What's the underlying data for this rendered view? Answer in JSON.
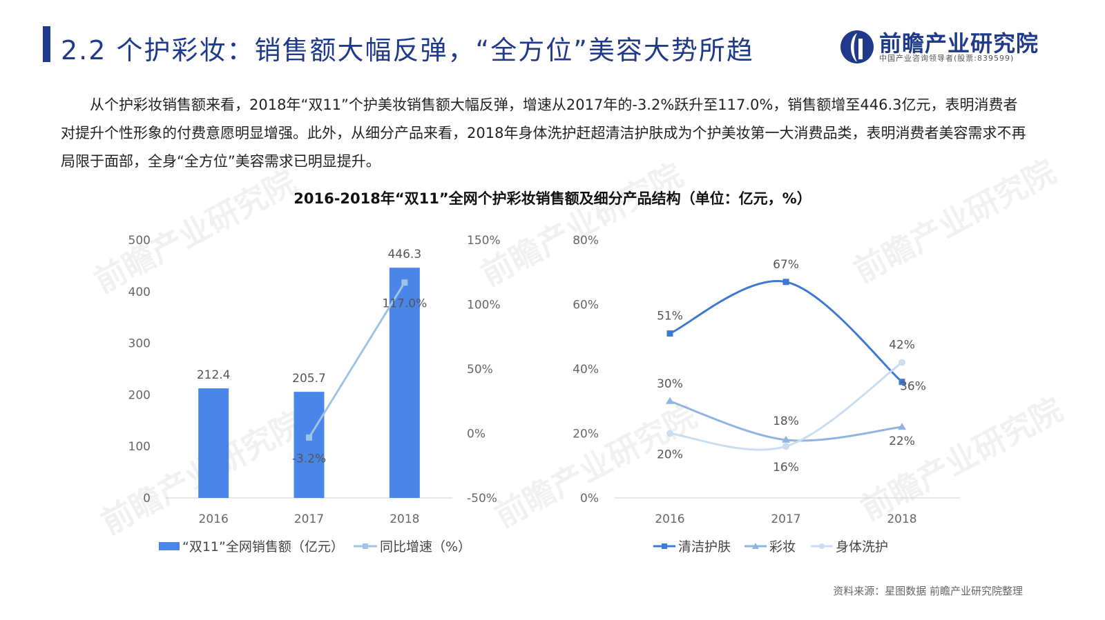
{
  "header": {
    "title": "2.2 个护彩妆：销售额大幅反弹，“全方位”美容大势所趋",
    "logo_name": "前瞻产业研究院",
    "logo_sub": "中国产业咨询领导者(股票:839599)"
  },
  "body": {
    "paragraph": "从个护彩妆销售额来看，2018年“双11”个护美妆销售额大幅反弹，增速从2017年的-3.2%跃升至117.0%，销售额增至446.3亿元，表明消费者对提升个性形象的付费意愿明显增强。此外，从细分产品来看，2018年身体洗护赶超清洁护肤成为个护美妆第一大消费品类，表明消费者美容需求不再局限于面部，全身“全方位”美容需求已明显提升。"
  },
  "chart_title": "2016-2018年“双11”全网个护彩妆销售额及细分产品结构（单位：亿元，%）",
  "source": "资料来源：星图数据 前瞻产业研究院整理",
  "watermark": "前瞻产业研究院",
  "colors": {
    "bar": "#4a86e8",
    "growth": "#9dc3e6",
    "clean": "#3d78d4",
    "makeup": "#8fb4e3",
    "body": "#c9dcf2",
    "title": "#1f3a8a"
  },
  "chart_data": [
    {
      "type": "bar",
      "categories": [
        "2016",
        "2017",
        "2018"
      ],
      "series": [
        {
          "name": "“双11”全网销售额（亿元）",
          "kind": "bar",
          "values": [
            212.4,
            205.7,
            446.3
          ],
          "labels": [
            "212.4",
            "205.7",
            "446.3"
          ]
        },
        {
          "name": "同比增速（%）",
          "kind": "line",
          "axis": "right",
          "values": [
            null,
            -3.2,
            117.0
          ],
          "labels": [
            "",
            "-3.2%",
            "117.0%"
          ]
        }
      ],
      "y_left": {
        "ylim": [
          0,
          500
        ],
        "ticks": [
          "0",
          "100",
          "200",
          "300",
          "400",
          "500"
        ]
      },
      "y_right": {
        "ylim": [
          -50,
          150
        ],
        "ticks": [
          "-50%",
          "0%",
          "50%",
          "100%",
          "150%"
        ]
      },
      "legend": "bottom"
    },
    {
      "type": "line",
      "categories": [
        "2016",
        "2017",
        "2018"
      ],
      "series": [
        {
          "name": "清洁护肤",
          "values": [
            51,
            67,
            36
          ],
          "labels": [
            "51%",
            "67%",
            "36%"
          ],
          "marker": "square"
        },
        {
          "name": "彩妆",
          "values": [
            30,
            18,
            22
          ],
          "labels": [
            "30%",
            "18%",
            "22%"
          ],
          "marker": "triangle"
        },
        {
          "name": "身体洗护",
          "values": [
            20,
            16,
            42
          ],
          "labels": [
            "20%",
            "16%",
            "42%"
          ],
          "marker": "circle"
        }
      ],
      "ylim": [
        0,
        80
      ],
      "ticks": [
        "0%",
        "20%",
        "40%",
        "60%",
        "80%"
      ],
      "legend": "bottom"
    }
  ]
}
